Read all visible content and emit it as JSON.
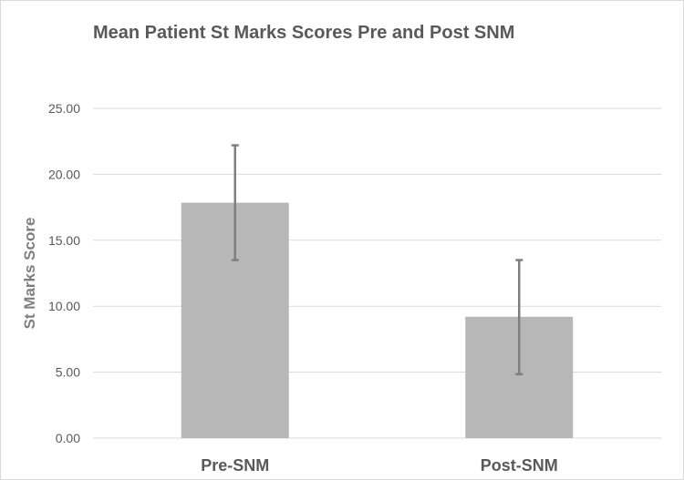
{
  "colors": {
    "bar": "#b7b7b7",
    "error_bar": "#7f7f7f",
    "gridline": "#d9d9d9",
    "text": "#595959"
  },
  "chart_data": {
    "type": "bar",
    "title": "Mean Patient St Marks Scores Pre and Post SNM",
    "xlabel": "",
    "ylabel": "St Marks Score",
    "categories": [
      "Pre-SNM",
      "Post-SNM"
    ],
    "values": [
      17.85,
      9.2
    ],
    "error_low": [
      13.5,
      4.85
    ],
    "error_high": [
      22.2,
      13.5
    ],
    "ylim": [
      0,
      25
    ],
    "yticks": [
      "0.00",
      "5.00",
      "10.00",
      "15.00",
      "20.00",
      "25.00"
    ],
    "ytick_values": [
      0,
      5,
      10,
      15,
      20,
      25
    ],
    "grid": true,
    "legend": "none"
  }
}
